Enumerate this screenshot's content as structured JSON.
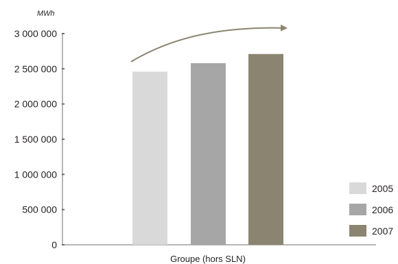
{
  "chart_data": {
    "type": "bar",
    "unit": "MWh",
    "xlabel": "Groupe (hors SLN)",
    "categories": [
      "Groupe (hors SLN)"
    ],
    "series": [
      {
        "name": "2005",
        "values": [
          2460000
        ],
        "color": "#d9d9d9"
      },
      {
        "name": "2006",
        "values": [
          2580000
        ],
        "color": "#a6a6a6"
      },
      {
        "name": "2007",
        "values": [
          2710000
        ],
        "color": "#8b8470"
      }
    ],
    "ylim": [
      0,
      3000000
    ],
    "yticks": [
      0,
      500000,
      1000000,
      1500000,
      2000000,
      2500000,
      3000000
    ],
    "ytick_labels": [
      "0",
      "500 000",
      "1 000 000",
      "1 500 000",
      "2 000 000",
      "2 500 000",
      "3 000 000"
    ],
    "grid": false,
    "legend_position": "bottom-right",
    "trend_arrow": {
      "color": "#8b8470",
      "direction": "increasing"
    }
  }
}
